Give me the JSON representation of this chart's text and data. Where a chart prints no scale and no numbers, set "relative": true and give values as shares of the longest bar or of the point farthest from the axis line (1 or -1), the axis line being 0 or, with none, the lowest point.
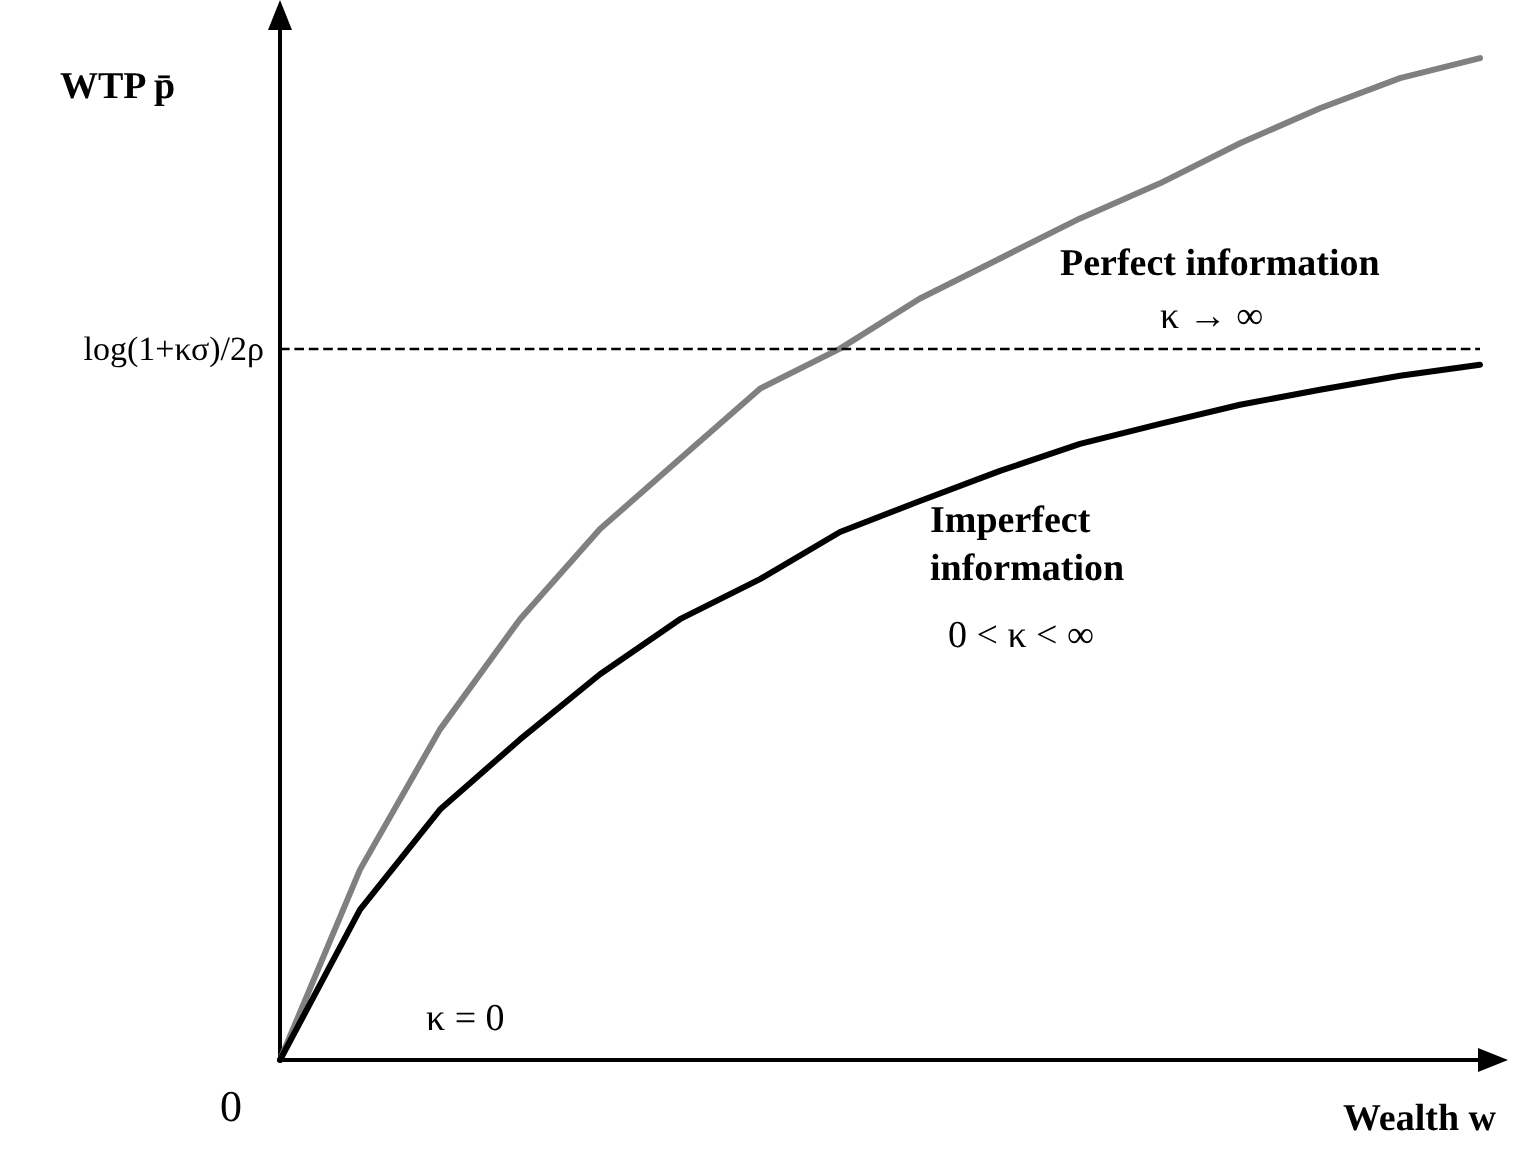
{
  "chart_data": {
    "type": "line",
    "relative": true,
    "xlabel": "Wealth w",
    "ylabel": "WTP p̄",
    "categories": [
      null,
      null,
      null,
      null,
      null,
      null,
      null,
      null,
      null,
      null,
      null,
      null,
      null,
      null,
      null,
      null
    ],
    "series": [
      {
        "name": "Perfect information",
        "color": "#808080",
        "values": [
          0,
          0.19,
          0.33,
          0.44,
          0.53,
          0.6,
          0.67,
          0.71,
          0.76,
          0.8,
          0.84,
          0.875,
          0.915,
          0.95,
          0.98,
          1
        ]
      },
      {
        "name": "Imperfect information",
        "color": "#000000",
        "values": [
          0,
          0.15,
          0.25,
          0.32,
          0.385,
          0.44,
          0.48,
          0.527,
          0.558,
          0.588,
          0.615,
          0.635,
          0.654,
          0.669,
          0.683,
          0.694
        ]
      }
    ],
    "ref_lines": [
      {
        "axis": "y",
        "value": 0.71,
        "label": "log(1+κσ)/2ρ",
        "line_style": "dashed",
        "color": "#000000"
      }
    ],
    "annotations": [
      "0",
      "κ → ∞",
      "0 < κ < ∞",
      "κ = 0"
    ],
    "legend": false,
    "grid": false,
    "marker": "none",
    "line_style": "solid"
  }
}
